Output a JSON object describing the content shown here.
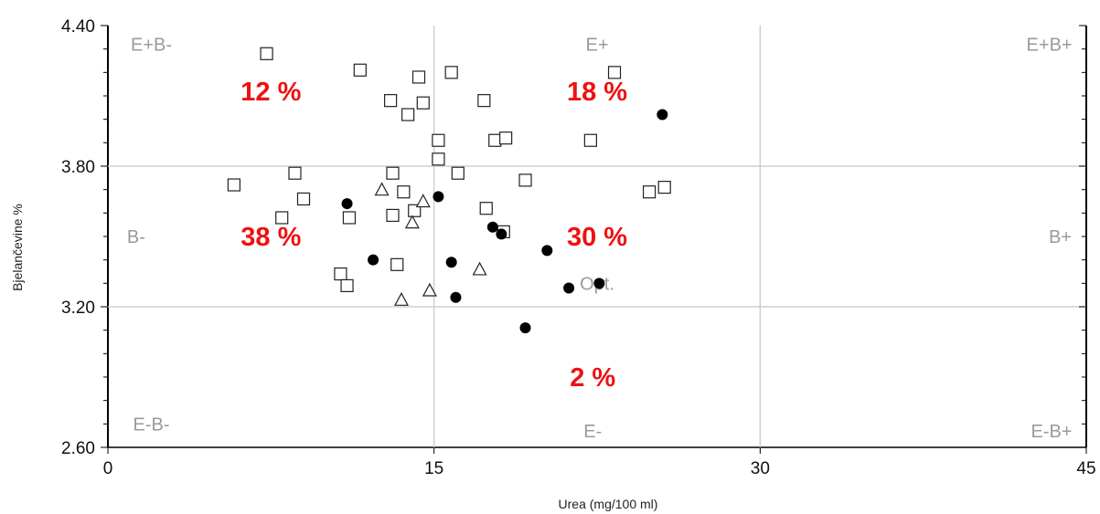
{
  "chart_data": {
    "type": "scatter",
    "xlabel": "Urea (mg/100 ml)",
    "ylabel": "Bjelančevine %",
    "xlim": [
      0,
      45
    ],
    "ylim": [
      2.6,
      4.4
    ],
    "xticks": [
      "0",
      "15",
      "30",
      "45"
    ],
    "xtick_values": [
      0,
      15,
      30,
      45
    ],
    "yticks": [
      "2.60",
      "3.20",
      "3.80",
      "4.40"
    ],
    "ytick_values": [
      2.6,
      3.2,
      3.8,
      4.4
    ],
    "reference_lines": {
      "x": [
        15,
        30
      ],
      "y": [
        3.2,
        3.8
      ]
    },
    "grid": false,
    "region_labels": [
      {
        "text": "E+B-",
        "x": 2,
        "y": 4.32
      },
      {
        "text": "E+",
        "x": 22.5,
        "y": 4.32
      },
      {
        "text": "E+B+",
        "x": 43.3,
        "y": 4.32
      },
      {
        "text": "B-",
        "x": 1.3,
        "y": 3.5
      },
      {
        "text": "B+",
        "x": 43.8,
        "y": 3.5
      },
      {
        "text": "Opt.",
        "x": 22.5,
        "y": 3.3
      },
      {
        "text": "E-B-",
        "x": 2,
        "y": 2.7
      },
      {
        "text": "E-",
        "x": 22.3,
        "y": 2.67
      },
      {
        "text": "E-B+",
        "x": 43.4,
        "y": 2.67
      }
    ],
    "percent_labels": [
      {
        "text": "12 %",
        "x": 7.5,
        "y": 4.12
      },
      {
        "text": "18 %",
        "x": 22.5,
        "y": 4.12
      },
      {
        "text": "38 %",
        "x": 7.5,
        "y": 3.5
      },
      {
        "text": "30 %",
        "x": 22.5,
        "y": 3.5
      },
      {
        "text": "2 %",
        "x": 22.3,
        "y": 2.9
      }
    ],
    "series": [
      {
        "marker": "square",
        "points": [
          [
            7.3,
            4.28
          ],
          [
            11.6,
            4.21
          ],
          [
            13,
            4.08
          ],
          [
            14.3,
            4.18
          ],
          [
            15.8,
            4.2
          ],
          [
            14.5,
            4.07
          ],
          [
            13.8,
            4.02
          ],
          [
            17.3,
            4.08
          ],
          [
            23.3,
            4.2
          ],
          [
            15.2,
            3.91
          ],
          [
            17.8,
            3.91
          ],
          [
            18.3,
            3.92
          ],
          [
            22.2,
            3.91
          ],
          [
            15.2,
            3.83
          ],
          [
            16.1,
            3.77
          ],
          [
            8.6,
            3.77
          ],
          [
            13.1,
            3.77
          ],
          [
            5.8,
            3.72
          ],
          [
            19.2,
            3.74
          ],
          [
            25.6,
            3.71
          ],
          [
            24.9,
            3.69
          ],
          [
            9,
            3.66
          ],
          [
            13.6,
            3.69
          ],
          [
            14.1,
            3.61
          ],
          [
            17.4,
            3.62
          ],
          [
            8,
            3.58
          ],
          [
            11.1,
            3.58
          ],
          [
            13.1,
            3.59
          ],
          [
            18.2,
            3.52
          ],
          [
            10.7,
            3.34
          ],
          [
            13.3,
            3.38
          ],
          [
            11,
            3.29
          ]
        ]
      },
      {
        "marker": "triangle",
        "points": [
          [
            12.6,
            3.7
          ],
          [
            14.5,
            3.65
          ],
          [
            14,
            3.56
          ],
          [
            17.1,
            3.36
          ],
          [
            14.8,
            3.27
          ],
          [
            13.5,
            3.23
          ]
        ]
      },
      {
        "marker": "filled-circle",
        "points": [
          [
            25.5,
            4.02
          ],
          [
            11,
            3.64
          ],
          [
            15.2,
            3.67
          ],
          [
            17.7,
            3.54
          ],
          [
            18.1,
            3.51
          ],
          [
            20.2,
            3.44
          ],
          [
            12.2,
            3.4
          ],
          [
            15.8,
            3.39
          ],
          [
            21.2,
            3.28
          ],
          [
            22.6,
            3.3
          ],
          [
            16,
            3.24
          ],
          [
            19.2,
            3.11
          ]
        ]
      }
    ]
  }
}
